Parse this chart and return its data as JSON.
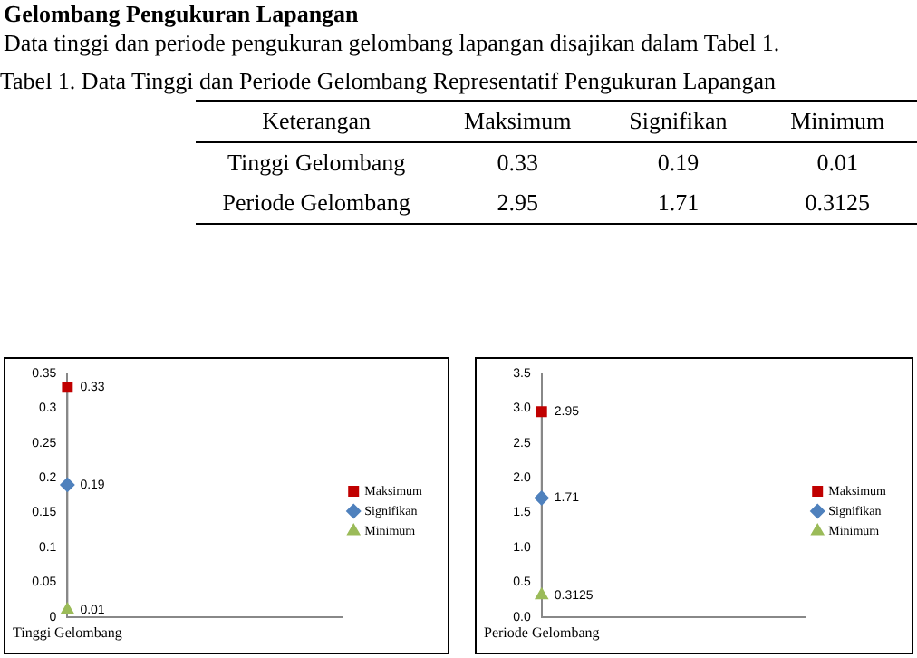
{
  "chart_data": [
    {
      "type": "other",
      "title": "Gelombang Pengukuran Lapangan",
      "subtitle": "Data tinggi dan periode pengukuran gelombang lapangan disajikan dalam Tabel 1.",
      "annotations": [
        "Tabel 1. Data Tinggi dan Periode Gelombang Representatif Pengukuran Lapangan",
        "Keterangan",
        "Maksimum",
        "Signifikan",
        "Minimum",
        "Tinggi Gelombang",
        "0.33",
        "0.19",
        "0.01",
        "Periode Gelombang",
        "2.95",
        "1.71",
        "0.3125"
      ]
    },
    {
      "type": "scatter",
      "categories": [
        "Tinggi Gelombang"
      ],
      "ylim": [
        0,
        0.35
      ],
      "yticks": [
        0,
        0.05,
        0.1,
        0.15,
        0.2,
        0.25,
        0.3,
        0.35
      ],
      "legend": "right",
      "data_labels": true,
      "series": [
        {
          "name": "Maksimum",
          "color": "#c00000",
          "marker": "square",
          "values": [
            0.33
          ]
        },
        {
          "name": "Signifikan",
          "color": "#4f81bd",
          "marker": "diamond",
          "values": [
            0.19
          ]
        },
        {
          "name": "Minimum",
          "color": "#9bbb59",
          "marker": "triangle",
          "values": [
            0.01
          ]
        }
      ]
    },
    {
      "type": "scatter",
      "categories": [
        "Periode Gelombang"
      ],
      "ylim": [
        0,
        3.5
      ],
      "yticks": [
        {
          "value": 0,
          "label": "0.0"
        },
        {
          "value": 0.5,
          "label": "0.5"
        },
        {
          "value": 1,
          "label": "1.0"
        },
        {
          "value": 1.5,
          "label": "1.5"
        },
        {
          "value": 2,
          "label": "2.0"
        },
        {
          "value": 2.5,
          "label": "2.5"
        },
        {
          "value": 3,
          "label": "3.0"
        },
        {
          "value": 3.5,
          "label": "3.5"
        }
      ],
      "legend": "right",
      "data_labels": true,
      "series": [
        {
          "name": "Maksimum",
          "color": "#c00000",
          "marker": "square",
          "values": [
            2.95
          ]
        },
        {
          "name": "Signifikan",
          "color": "#4f81bd",
          "marker": "diamond",
          "values": [
            1.71
          ]
        },
        {
          "name": "Minimum",
          "color": "#9bbb59",
          "marker": "triangle",
          "values": [
            0.3125
          ]
        }
      ]
    }
  ]
}
